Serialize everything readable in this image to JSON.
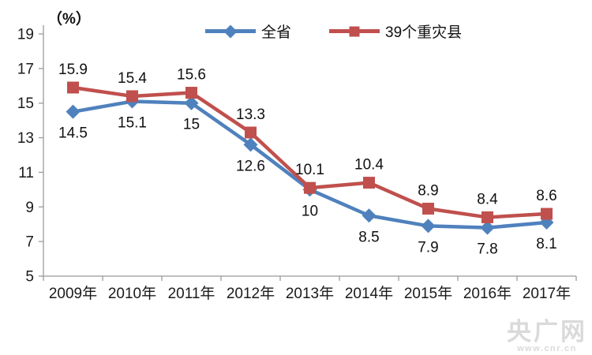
{
  "chart_data": {
    "type": "line",
    "unit_label": "（%）",
    "categories": [
      "2009年",
      "2010年",
      "2011年",
      "2012年",
      "2013年",
      "2014年",
      "2015年",
      "2016年",
      "2017年"
    ],
    "series": [
      {
        "name": "全省",
        "color": "#4F81BD",
        "marker": "diamond",
        "label_position": "below",
        "values": [
          14.5,
          15.1,
          15,
          12.6,
          10,
          8.5,
          7.9,
          7.8,
          8.1
        ]
      },
      {
        "name": "39个重灾县",
        "color": "#C0504D",
        "marker": "square",
        "label_position": "above",
        "values": [
          15.9,
          15.4,
          15.6,
          13.3,
          10.1,
          10.4,
          8.9,
          8.4,
          8.6
        ]
      }
    ],
    "ylim": [
      5,
      19
    ],
    "ytick_step": 2,
    "grid": false,
    "legend_position": "top",
    "axis_color": "#9b9b9b"
  },
  "watermark": {
    "title": "央广网",
    "subtitle": "www.cnr.cn"
  }
}
